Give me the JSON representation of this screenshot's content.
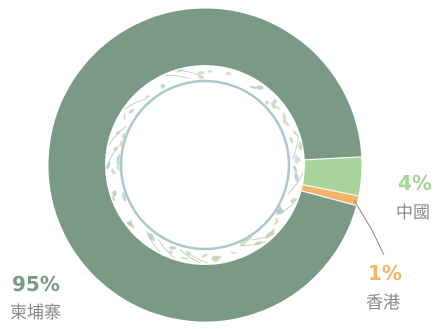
{
  "chart_data": {
    "type": "pie",
    "style": "donut",
    "categories": [
      "柬埔寨",
      "中國",
      "香港"
    ],
    "values": [
      95,
      4,
      1
    ],
    "labels": [
      "95%",
      "4%",
      "1%"
    ],
    "colors": [
      "#7a9a86",
      "#a8d49a",
      "#f2b468"
    ],
    "label_colors": [
      "#7a9a86",
      "#a8d49a",
      "#f2b468"
    ],
    "leader_line_color": "#8a8a8a",
    "center_decoration": "leaf-wreath"
  }
}
